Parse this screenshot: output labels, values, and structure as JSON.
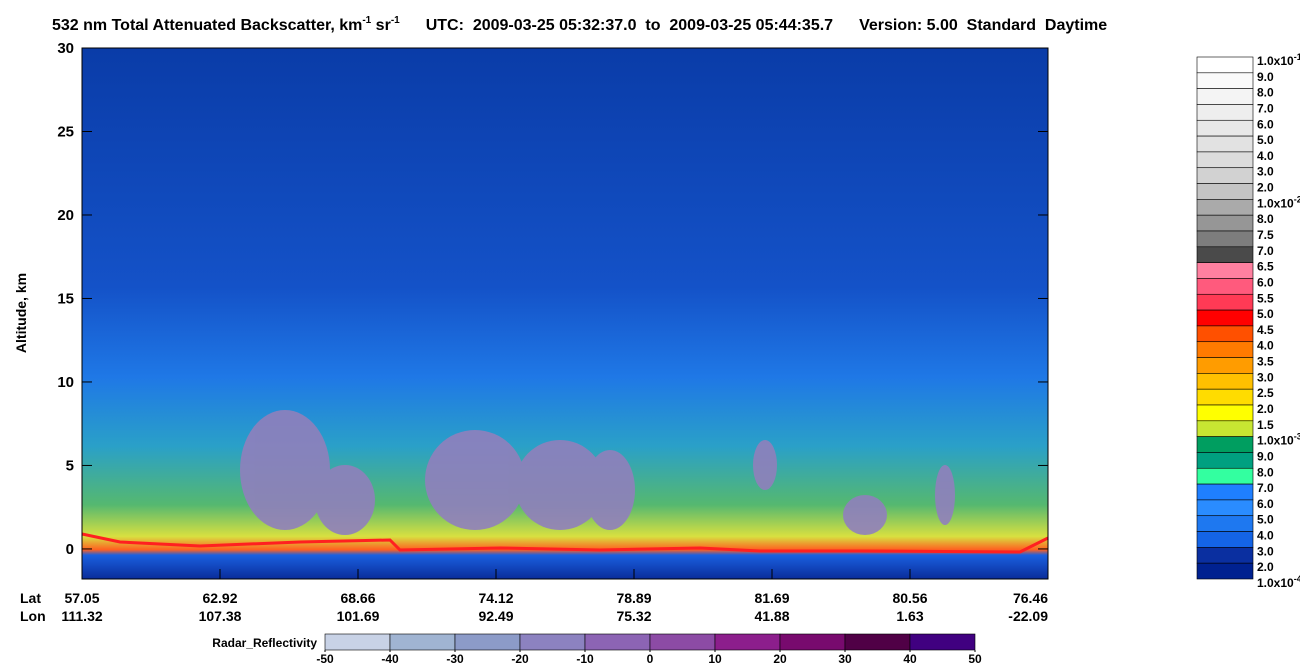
{
  "chart_data": {
    "type": "curtain",
    "title_parts": [
      "532 nm Total Attenuated Backscatter, km",
      "-1",
      " sr",
      "-1",
      "UTC:  2009-03-25 05:32:37.0  to  2009-03-25 05:44:35.7",
      "Version: 5.00  Standard  Daytime"
    ],
    "ylabel": "Altitude, km",
    "ylim": [
      -1.8,
      30
    ],
    "yticks": [
      0,
      5,
      10,
      15,
      20,
      25,
      30
    ],
    "x_rows": [
      {
        "name": "Lat",
        "values": [
          57.05,
          62.92,
          68.66,
          74.12,
          78.89,
          81.69,
          80.56,
          76.46
        ]
      },
      {
        "name": "Lon",
        "values": [
          111.32,
          107.38,
          101.69,
          92.49,
          75.32,
          41.88,
          1.63,
          -22.09
        ]
      }
    ],
    "colorbar": {
      "labels": [
        {
          "text": "1.0x10",
          "sup": "-1"
        },
        "9.0",
        "8.0",
        "7.0",
        "6.0",
        "5.0",
        "4.0",
        "3.0",
        "2.0",
        {
          "text": "1.0x10",
          "sup": "-2"
        },
        "8.0",
        "7.5",
        "7.0",
        "6.5",
        "6.0",
        "5.5",
        "5.0",
        "4.5",
        "4.0",
        "3.5",
        "3.0",
        "2.5",
        "2.0",
        "1.5",
        {
          "text": "1.0x10",
          "sup": "-3"
        },
        "9.0",
        "8.0",
        "7.0",
        "6.0",
        "5.0",
        "4.0",
        "3.0",
        "2.0",
        {
          "text": "1.0x10",
          "sup": "-4"
        }
      ],
      "colors": [
        "#ffffff",
        "#fafafa",
        "#f4f4f4",
        "#eeeeee",
        "#e8e8e8",
        "#e2e2e2",
        "#dcdcdc",
        "#d2d2d2",
        "#c4c4c4",
        "#aaaaaa",
        "#969696",
        "#7d7d7d",
        "#4a4a4a",
        "#ff80a0",
        "#ff5a7d",
        "#ff3a55",
        "#ff0000",
        "#ff5000",
        "#ff7a00",
        "#ff9c00",
        "#ffc000",
        "#ffdc00",
        "#ffff00",
        "#c8e632",
        "#009e60",
        "#00a080",
        "#33ffa0",
        "#1f7fff",
        "#2a8cff",
        "#1e78f0",
        "#1464e6",
        "#0a2fa0",
        "#002190"
      ]
    },
    "radar": {
      "label": "Radar_Reflectivity",
      "lim": [
        -50,
        50
      ],
      "ticks": [
        -50,
        -40,
        -30,
        -20,
        -10,
        0,
        10,
        20,
        30,
        40,
        50
      ],
      "colors": [
        "#c8d2e6",
        "#a0b4d2",
        "#8c9bc8",
        "#8c82c0",
        "#8c64b4",
        "#8c4ba5",
        "#8c1e8c",
        "#780a6e",
        "#500046",
        "#400080"
      ]
    }
  }
}
